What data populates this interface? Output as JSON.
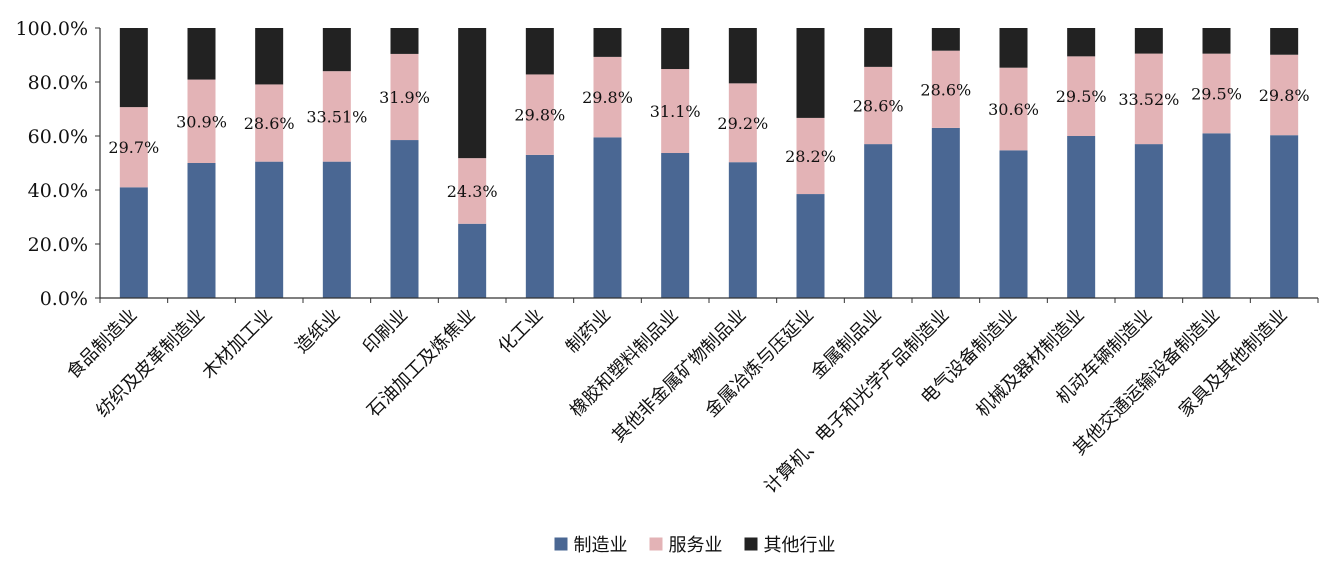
{
  "chart_data": {
    "type": "bar",
    "stacked": true,
    "categories": [
      "食品制造业",
      "纺织及皮革制造业",
      "木材加工业",
      "造纸业",
      "印刷业",
      "石油加工及炼焦业",
      "化工业",
      "制药业",
      "橡胶和塑料制品业",
      "其他非金属矿物制品业",
      "金属冶炼与压延业",
      "金属制品业",
      "计算机、电子和光学产品制造业",
      "电气设备制造业",
      "机械及器材制造业",
      "机动车辆制造业",
      "其他交通运输设备制造业",
      "家具及其他制造业"
    ],
    "series": [
      {
        "name": "制造业",
        "color": "#4a6793",
        "values": [
          41.0,
          50.0,
          50.5,
          50.5,
          58.5,
          27.5,
          53.0,
          59.5,
          53.7,
          50.3,
          38.5,
          57.0,
          63.0,
          54.7,
          60.0,
          57.0,
          61.0,
          60.3
        ]
      },
      {
        "name": "服务业",
        "color": "#e3b3b6",
        "values": [
          29.7,
          30.9,
          28.6,
          33.51,
          31.9,
          24.3,
          29.8,
          29.8,
          31.1,
          29.2,
          28.2,
          28.6,
          28.6,
          30.6,
          29.5,
          33.52,
          29.5,
          29.8
        ]
      },
      {
        "name": "其他行业",
        "color": "#222222",
        "values": [
          29.3,
          19.1,
          20.9,
          15.99,
          9.6,
          48.2,
          17.2,
          10.7,
          15.2,
          20.5,
          33.3,
          14.4,
          8.4,
          14.7,
          10.5,
          9.48,
          9.5,
          9.9
        ]
      }
    ],
    "data_labels": [
      "29.7%",
      "30.9%",
      "28.6%",
      "33.51%",
      "31.9%",
      "24.3%",
      "29.8%",
      "29.8%",
      "31.1%",
      "29.2%",
      "28.2%",
      "28.6%",
      "28.6%",
      "30.6%",
      "29.5%",
      "33.52%",
      "29.5%",
      "29.8%"
    ],
    "y_ticks": [
      "0.0%",
      "20.0%",
      "40.0%",
      "60.0%",
      "80.0%",
      "100.0%"
    ],
    "ylim": [
      0,
      100
    ],
    "legend_position": "bottom-center",
    "grid": false
  }
}
